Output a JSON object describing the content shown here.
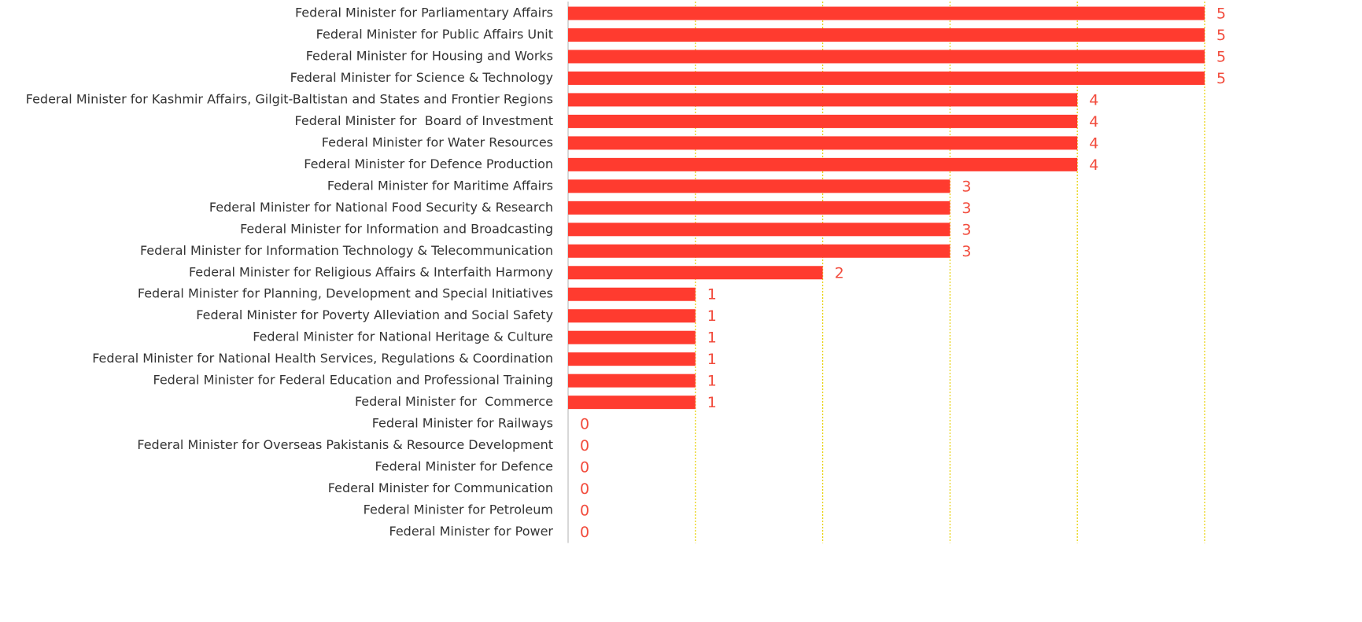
{
  "chart_data": {
    "type": "barh",
    "categories": [
      "Federal Minister for Parliamentary Affairs",
      "Federal Minister for Public Affairs Unit",
      "Federal Minister for Housing and Works",
      "Federal Minister for Science & Technology",
      "Federal Minister for Kashmir Affairs, Gilgit-Baltistan and States and Frontier Regions",
      "Federal Minister for  Board of Investment",
      "Federal Minister for Water Resources",
      "Federal Minister for Defence Production",
      "Federal Minister for Maritime Affairs",
      "Federal Minister for National Food Security & Research",
      "Federal Minister for Information and Broadcasting",
      "Federal Minister for Information Technology & Telecommunication",
      "Federal Minister for Religious Affairs & Interfaith Harmony",
      "Federal Minister for Planning, Development and Special Initiatives",
      "Federal Minister for Poverty Alleviation and Social Safety",
      "Federal Minister for National Heritage & Culture",
      "Federal Minister for National Health Services, Regulations & Coordination",
      "Federal Minister for Federal Education and Professional Training",
      "Federal Minister for  Commerce",
      "Federal Minister for Railways",
      "Federal Minister for Overseas Pakistanis & Resource Development",
      "Federal Minister for Defence",
      "Federal Minister for Communication",
      "Federal Minister for Petroleum",
      "Federal Minister for Power"
    ],
    "values": [
      5,
      5,
      5,
      5,
      4,
      4,
      4,
      4,
      3,
      3,
      3,
      3,
      2,
      1,
      1,
      1,
      1,
      1,
      1,
      0,
      0,
      0,
      0,
      0,
      0
    ],
    "color": "#ff3b2f",
    "label_color": "#f24c3d",
    "grid_color": "#e8d000",
    "xlim": [
      0,
      5
    ],
    "xticks": [
      1,
      2,
      3,
      4,
      5
    ],
    "grid": true
  }
}
